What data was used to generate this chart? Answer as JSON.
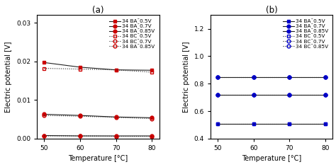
{
  "x": [
    50,
    60,
    70,
    80
  ],
  "subplot_a": {
    "title": "(a)",
    "ylabel": "Electric potential [V]",
    "xlabel": "Temperature [°C]",
    "ylim": [
      0,
      0.032
    ],
    "yticks": [
      0,
      0.01,
      0.02,
      0.03
    ],
    "series": [
      {
        "label": "34 BA¯0.5V",
        "values": [
          0.0197,
          0.0185,
          0.0178,
          0.0177
        ],
        "ls": "-",
        "marker": "s",
        "filled": true,
        "line_color": "#222222",
        "marker_color": "#cc0000"
      },
      {
        "label": "34 BA¯0.7V",
        "values": [
          0.0063,
          0.006,
          0.0056,
          0.0054
        ],
        "ls": "-",
        "marker": "o",
        "filled": true,
        "line_color": "#222222",
        "marker_color": "#cc0000"
      },
      {
        "label": "34 BA¯0.85V",
        "values": [
          0.0008,
          0.0007,
          0.0007,
          0.0007
        ],
        "ls": "-",
        "marker": "o",
        "filled": true,
        "line_color": "#222222",
        "marker_color": "#cc0000"
      },
      {
        "label": "34 BC¯0.5V",
        "values": [
          0.0182,
          0.018,
          0.0178,
          0.0172
        ],
        "ls": ":",
        "marker": "s",
        "filled": false,
        "line_color": "#222222",
        "marker_color": "#cc0000"
      },
      {
        "label": "34 BC¯0.7V",
        "values": [
          0.006,
          0.0058,
          0.0055,
          0.0052
        ],
        "ls": ":",
        "marker": "o",
        "filled": false,
        "line_color": "#222222",
        "marker_color": "#cc0000"
      },
      {
        "label": "34 BA¯0.85V",
        "values": [
          0.0007,
          0.0007,
          0.0006,
          0.0006
        ],
        "ls": ":",
        "marker": "o",
        "filled": false,
        "line_color": "#222222",
        "marker_color": "#cc0000"
      }
    ]
  },
  "subplot_b": {
    "title": "(b)",
    "ylabel": "Electric potential [V]",
    "xlabel": "Temperature [°C]",
    "ylim": [
      0.4,
      1.3
    ],
    "yticks": [
      0.4,
      0.6,
      0.8,
      1.0,
      1.2
    ],
    "series": [
      {
        "label": "34 BA¯0.5V",
        "values": [
          0.51,
          0.51,
          0.51,
          0.51
        ],
        "ls": "-",
        "marker": "s",
        "filled": true,
        "line_color": "#222222",
        "marker_color": "#0000cc"
      },
      {
        "label": "34 BA¯0.7V",
        "values": [
          0.72,
          0.72,
          0.72,
          0.72
        ],
        "ls": "-",
        "marker": "o",
        "filled": true,
        "line_color": "#222222",
        "marker_color": "#0000cc"
      },
      {
        "label": "34 BA¯0.85V",
        "values": [
          0.85,
          0.85,
          0.85,
          0.85
        ],
        "ls": "-",
        "marker": "o",
        "filled": true,
        "line_color": "#222222",
        "marker_color": "#0000cc"
      },
      {
        "label": "34 BC¯0.5V",
        "values": [
          0.51,
          0.51,
          0.51,
          0.51
        ],
        "ls": ":",
        "marker": "s",
        "filled": false,
        "line_color": "#222222",
        "marker_color": "#0000cc"
      },
      {
        "label": "34 BC¯0.7V",
        "values": [
          0.72,
          0.72,
          0.72,
          0.72
        ],
        "ls": ":",
        "marker": "o",
        "filled": false,
        "line_color": "#222222",
        "marker_color": "#0000cc"
      },
      {
        "label": "34 BC¯0.85V",
        "values": [
          0.85,
          0.85,
          0.85,
          0.85
        ],
        "ls": ":",
        "marker": "o",
        "filled": false,
        "line_color": "#222222",
        "marker_color": "#0000cc"
      }
    ]
  }
}
